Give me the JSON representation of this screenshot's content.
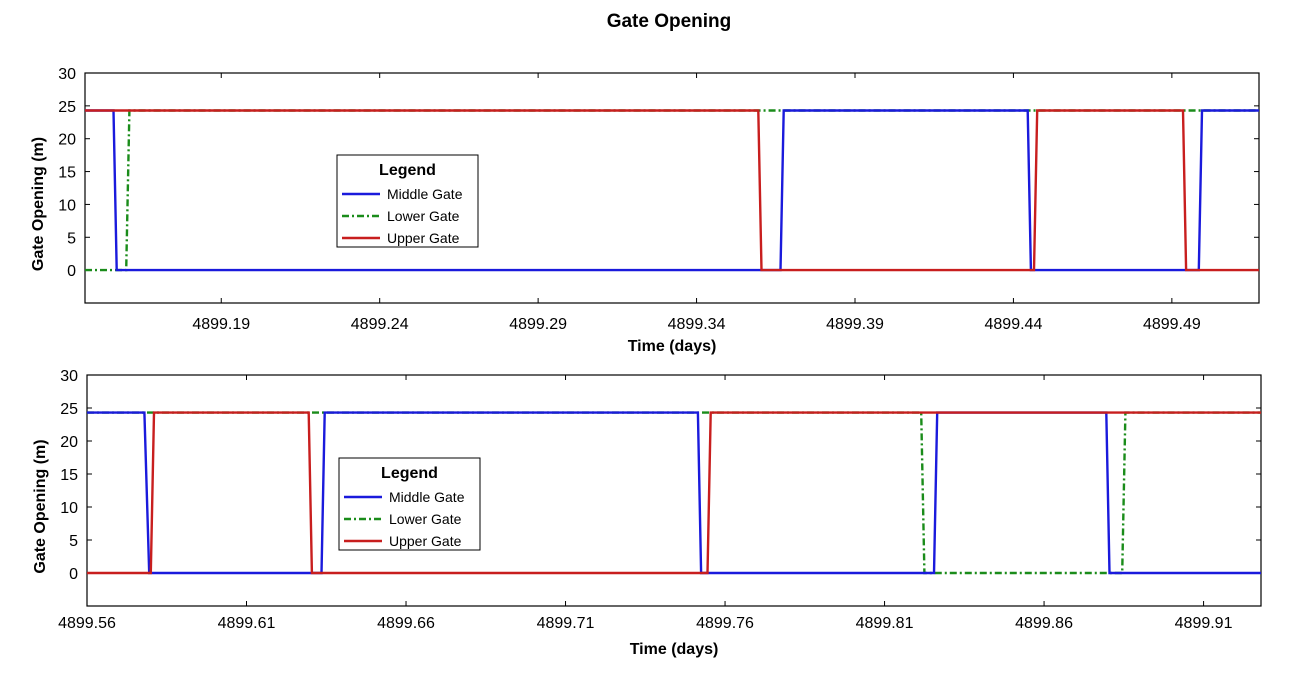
{
  "figure": {
    "title": "Gate Opening"
  },
  "colors": {
    "middle": "#1a1adc",
    "lower": "#1a8c1a",
    "upper": "#c81e1e"
  },
  "chart_data": [
    {
      "type": "line",
      "xlabel": "Time (days)",
      "ylabel": "Gate Opening (m)",
      "xlim": [
        4899.147,
        4899.5175
      ],
      "ylim": [
        -5,
        30
      ],
      "xticks": [
        4899.19,
        4899.24,
        4899.29,
        4899.34,
        4899.39,
        4899.44,
        4899.49
      ],
      "xtick_labels": [
        "4899.19",
        "4899.24",
        "4899.29",
        "4899.34",
        "4899.39",
        "4899.44",
        "4899.49"
      ],
      "yticks": [
        0,
        5,
        10,
        15,
        20,
        25,
        30
      ],
      "ytick_labels": [
        "0",
        "5",
        "10",
        "15",
        "20",
        "25",
        "30"
      ],
      "legend": {
        "title": "Legend",
        "position": "left-center"
      },
      "series": [
        {
          "name": "Middle Gate",
          "color": "#1a1adc",
          "style": "solid",
          "x": [
            4899.147,
            4899.156,
            4899.157,
            4899.3665,
            4899.3675,
            4899.4445,
            4899.4455,
            4899.4985,
            4899.4995,
            4899.5175
          ],
          "y": [
            24.3,
            24.3,
            0,
            0,
            24.3,
            24.3,
            0,
            0,
            24.3,
            24.3
          ]
        },
        {
          "name": "Lower Gate",
          "color": "#1a8c1a",
          "style": "dashdot",
          "x": [
            4899.147,
            4899.16,
            4899.161,
            4899.5175
          ],
          "y": [
            0,
            0,
            24.3,
            24.3
          ]
        },
        {
          "name": "Upper Gate",
          "color": "#c81e1e",
          "style": "solid",
          "x": [
            4899.147,
            4899.3595,
            4899.3605,
            4899.4465,
            4899.4475,
            4899.4935,
            4899.4945,
            4899.5175
          ],
          "y": [
            24.3,
            24.3,
            0,
            0,
            24.3,
            24.3,
            0,
            0
          ]
        }
      ]
    },
    {
      "type": "line",
      "xlabel": "Time (days)",
      "ylabel": "Gate Opening (m)",
      "xlim": [
        4899.56,
        4899.928
      ],
      "ylim": [
        -5,
        30
      ],
      "xticks": [
        4899.56,
        4899.61,
        4899.66,
        4899.71,
        4899.76,
        4899.81,
        4899.86,
        4899.91
      ],
      "xtick_labels": [
        "4899.56",
        "4899.61",
        "4899.66",
        "4899.71",
        "4899.76",
        "4899.81",
        "4899.86",
        "4899.91"
      ],
      "yticks": [
        0,
        5,
        10,
        15,
        20,
        25,
        30
      ],
      "ytick_labels": [
        "0",
        "5",
        "10",
        "15",
        "20",
        "25",
        "30"
      ],
      "legend": {
        "title": "Legend",
        "position": "left-center"
      },
      "series": [
        {
          "name": "Middle Gate",
          "color": "#1a1adc",
          "style": "solid",
          "x": [
            4899.56,
            4899.578,
            4899.5795,
            4899.6335,
            4899.6345,
            4899.7515,
            4899.7525,
            4899.8255,
            4899.8265,
            4899.8795,
            4899.8805,
            4899.928
          ],
          "y": [
            24.3,
            24.3,
            0,
            0,
            24.3,
            24.3,
            0,
            0,
            24.3,
            24.3,
            0,
            0
          ]
        },
        {
          "name": "Lower Gate",
          "color": "#1a8c1a",
          "style": "dashdot",
          "x": [
            4899.56,
            4899.8215,
            4899.8225,
            4899.8845,
            4899.8855,
            4899.928
          ],
          "y": [
            24.3,
            24.3,
            0,
            0,
            24.3,
            24.3
          ]
        },
        {
          "name": "Upper Gate",
          "color": "#c81e1e",
          "style": "solid",
          "x": [
            4899.56,
            4899.58,
            4899.581,
            4899.6295,
            4899.6305,
            4899.7545,
            4899.7555,
            4899.928
          ],
          "y": [
            0,
            0,
            24.3,
            24.3,
            0,
            0,
            24.3,
            24.3
          ]
        }
      ]
    }
  ]
}
